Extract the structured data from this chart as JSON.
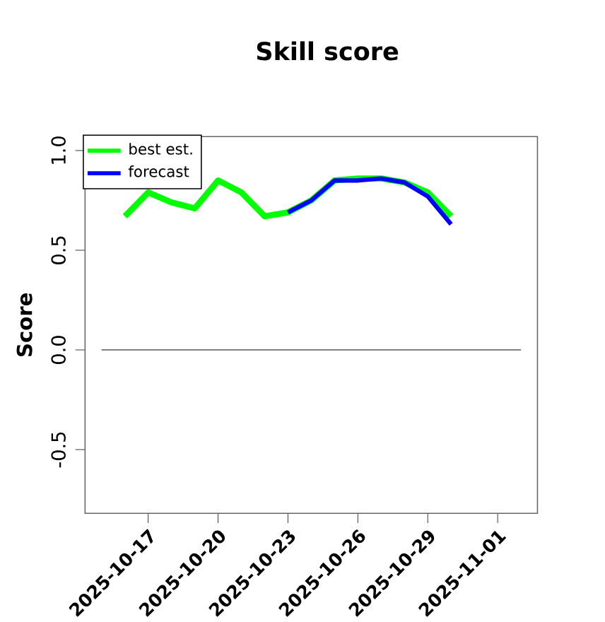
{
  "chart_data": {
    "type": "line",
    "title": "Skill score",
    "ylabel": "Score",
    "x": [
      "2025-10-16",
      "2025-10-17",
      "2025-10-18",
      "2025-10-19",
      "2025-10-20",
      "2025-10-21",
      "2025-10-22",
      "2025-10-23",
      "2025-10-24",
      "2025-10-25",
      "2025-10-26",
      "2025-10-27",
      "2025-10-28",
      "2025-10-29",
      "2025-10-30"
    ],
    "series": [
      {
        "name": "best est.",
        "color": "#00ff00",
        "values": [
          0.67,
          0.79,
          0.74,
          0.71,
          0.85,
          0.79,
          0.67,
          0.69,
          0.75,
          0.85,
          0.86,
          0.86,
          0.84,
          0.79,
          0.67
        ]
      },
      {
        "name": "forecast",
        "color": "#0000ff",
        "values": [
          null,
          null,
          null,
          null,
          null,
          null,
          null,
          0.69,
          0.75,
          0.85,
          0.85,
          0.86,
          0.84,
          0.77,
          0.63
        ]
      },
      {
        "color": "#555555",
        "x": [
          "2025-10-15",
          "2025-11-02"
        ],
        "values": [
          0,
          0
        ]
      }
    ],
    "xlim": [
      "2025-10-14T07:00",
      "2025-11-02T17:00"
    ],
    "ylim": [
      -0.82,
      1.07
    ],
    "xticks": [
      "2025-10-17",
      "2025-10-20",
      "2025-10-23",
      "2025-10-26",
      "2025-10-29",
      "2025-11-01"
    ],
    "yticks": [
      -0.5,
      {
        "value": 0,
        "label": "0.0"
      },
      0.5,
      {
        "value": 1,
        "label": "1.0"
      }
    ],
    "grid": false,
    "legend": "top left",
    "line_style": "solid",
    "marker": "none"
  }
}
